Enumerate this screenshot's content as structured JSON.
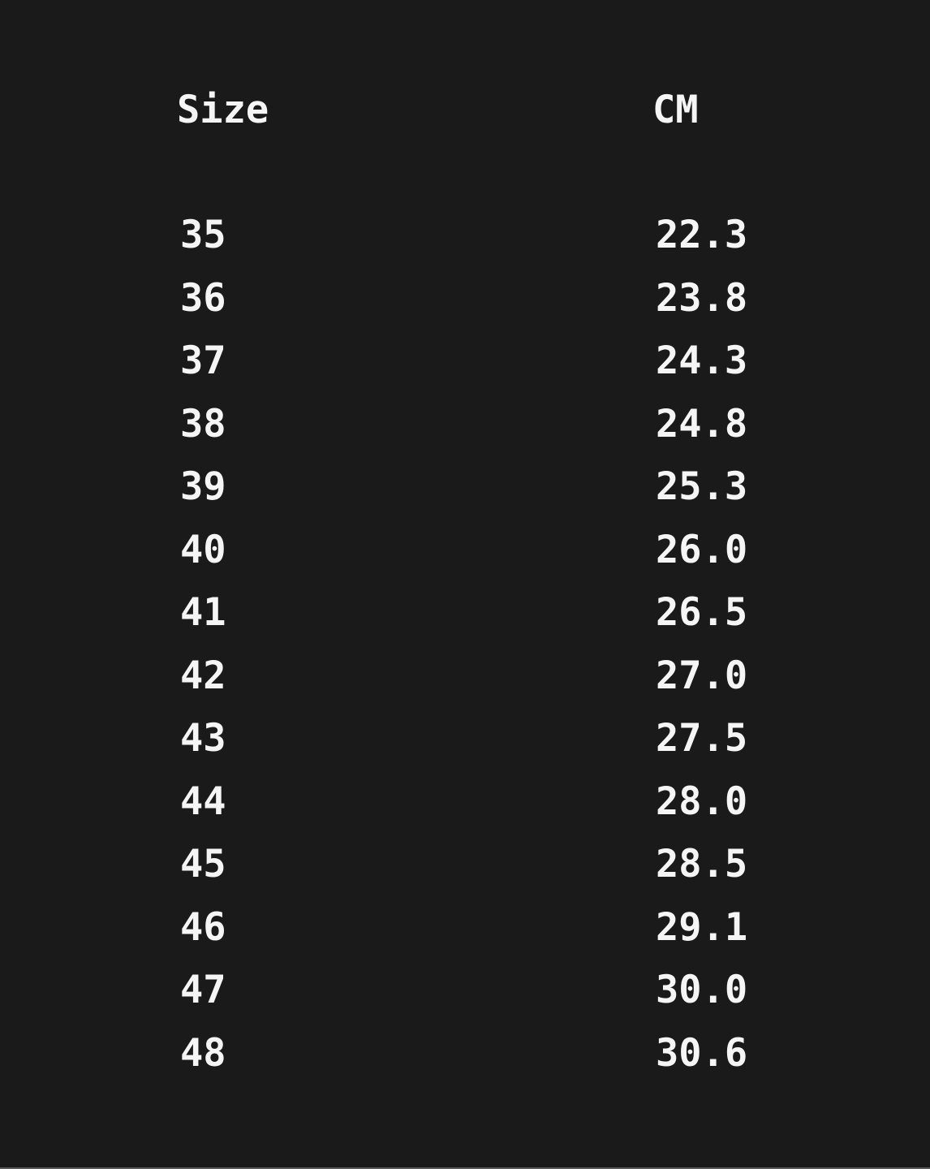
{
  "colors": {
    "background": "#1a1a1a",
    "text": "#f5f5f5"
  },
  "table": {
    "headers": [
      "Size",
      "CM"
    ],
    "rows": [
      [
        "35",
        "22.3"
      ],
      [
        "36",
        "23.8"
      ],
      [
        "37",
        "24.3"
      ],
      [
        "38",
        "24.8"
      ],
      [
        "39",
        "25.3"
      ],
      [
        "40",
        "26.0"
      ],
      [
        "41",
        "26.5"
      ],
      [
        "42",
        "27.0"
      ],
      [
        "43",
        "27.5"
      ],
      [
        "44",
        "28.0"
      ],
      [
        "45",
        "28.5"
      ],
      [
        "46",
        "29.1"
      ],
      [
        "47",
        "30.0"
      ],
      [
        "48",
        "30.6"
      ]
    ]
  }
}
